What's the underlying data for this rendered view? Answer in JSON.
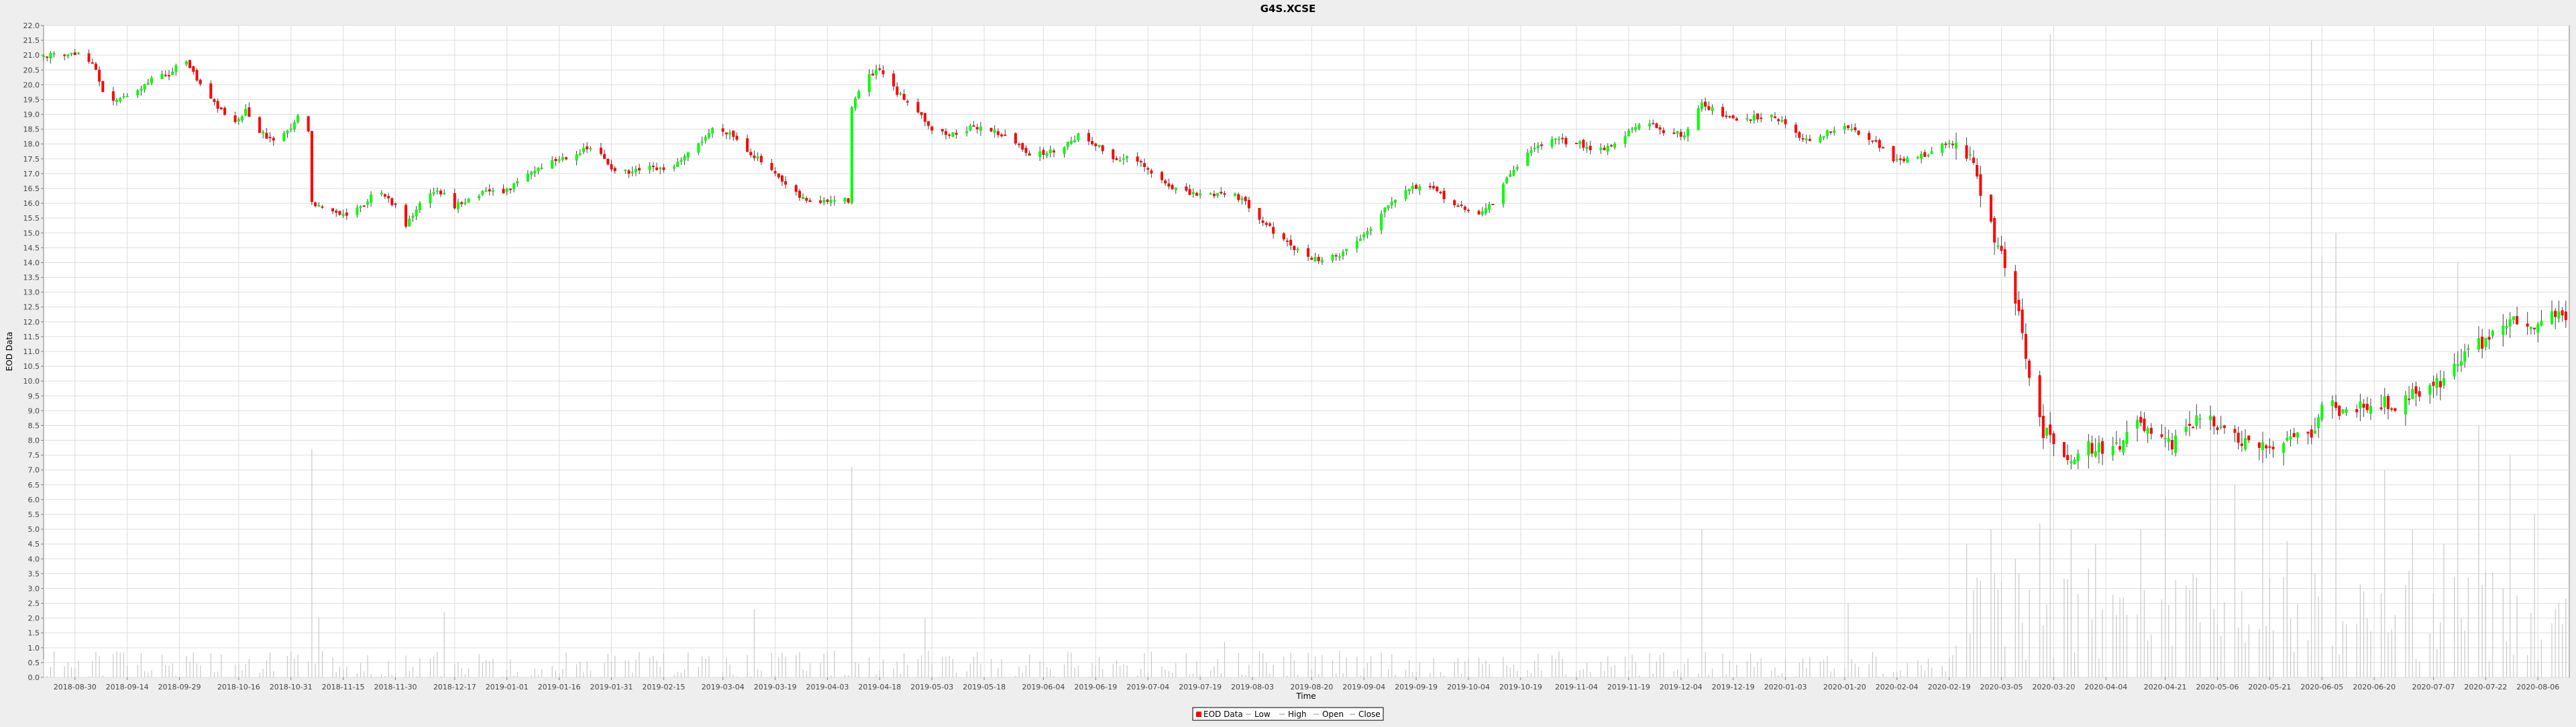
{
  "chart_data": {
    "type": "candlestick",
    "title": "G4S.XCSE",
    "xlabel": "Time",
    "ylabel": "EOD Data",
    "ylim": [
      0,
      22
    ],
    "y_ticks": [
      0.0,
      0.5,
      1.0,
      1.5,
      2.0,
      2.5,
      3.0,
      3.5,
      4.0,
      4.5,
      5.0,
      5.5,
      6.0,
      6.5,
      7.0,
      7.5,
      8.0,
      8.5,
      9.0,
      9.5,
      10.0,
      10.5,
      11.0,
      11.5,
      12.0,
      12.5,
      13.0,
      13.5,
      14.0,
      14.5,
      15.0,
      15.5,
      16.0,
      16.5,
      17.0,
      17.5,
      18.0,
      18.5,
      19.0,
      19.5,
      20.0,
      20.5,
      21.0,
      21.5,
      22.0
    ],
    "x_ticks": [
      "2018-08-30",
      "2018-09-14",
      "2018-09-29",
      "2018-10-16",
      "2018-10-31",
      "2018-11-15",
      "2018-11-30",
      "2018-12-17",
      "2019-01-01",
      "2019-01-16",
      "2019-01-31",
      "2019-02-15",
      "2019-03-04",
      "2019-03-19",
      "2019-04-03",
      "2019-04-18",
      "2019-05-03",
      "2019-05-18",
      "2019-06-04",
      "2019-06-19",
      "2019-07-04",
      "2019-07-19",
      "2019-08-03",
      "2019-08-20",
      "2019-09-04",
      "2019-09-19",
      "2019-10-04",
      "2019-10-19",
      "2019-11-04",
      "2019-11-19",
      "2019-12-04",
      "2019-12-19",
      "2020-01-03",
      "2020-01-20",
      "2020-02-04",
      "2020-02-19",
      "2020-03-05",
      "2020-03-20",
      "2020-04-04",
      "2020-04-21",
      "2020-05-06",
      "2020-05-21",
      "2020-06-05",
      "2020-06-20",
      "2020-07-07",
      "2020-07-22",
      "2020-08-06"
    ],
    "x_range": [
      "2018-08-21",
      "2020-08-15"
    ],
    "grid": true,
    "legend_position": "bottom",
    "legend": [
      "EOD Data",
      "Low",
      "High",
      "Open",
      "Close"
    ],
    "colors": {
      "up": "#00ff00",
      "down": "#ff0000",
      "wick": "#404040",
      "volume": "#c8c8c8",
      "grid": "#dedede",
      "plot_bg": "#ffffff",
      "page_bg": "#eeeeee"
    },
    "price_path": [
      [
        "2018-08-21",
        21.0
      ],
      [
        "2018-09-01",
        21.0
      ],
      [
        "2018-09-04",
        20.8
      ],
      [
        "2018-09-07",
        19.8
      ],
      [
        "2018-09-10",
        19.4
      ],
      [
        "2018-09-14",
        19.6
      ],
      [
        "2018-09-20",
        20.1
      ],
      [
        "2018-09-26",
        20.4
      ],
      [
        "2018-10-01",
        20.8
      ],
      [
        "2018-10-05",
        20.0
      ],
      [
        "2018-10-10",
        19.2
      ],
      [
        "2018-10-15",
        18.7
      ],
      [
        "2018-10-18",
        19.1
      ],
      [
        "2018-10-22",
        18.4
      ],
      [
        "2018-10-26",
        18.1
      ],
      [
        "2018-10-31",
        18.5
      ],
      [
        "2018-11-02",
        19.0
      ],
      [
        "2018-11-05",
        18.4
      ],
      [
        "2018-11-06",
        16.0
      ],
      [
        "2018-11-10",
        15.9
      ],
      [
        "2018-11-15",
        15.6
      ],
      [
        "2018-11-20",
        15.9
      ],
      [
        "2018-11-25",
        16.4
      ],
      [
        "2018-11-30",
        15.9
      ],
      [
        "2018-12-03",
        15.2
      ],
      [
        "2018-12-07",
        16.0
      ],
      [
        "2018-12-12",
        16.5
      ],
      [
        "2018-12-17",
        15.9
      ],
      [
        "2018-12-22",
        16.2
      ],
      [
        "2018-12-27",
        16.4
      ],
      [
        "2019-01-01",
        16.4
      ],
      [
        "2019-01-06",
        16.9
      ],
      [
        "2019-01-10",
        17.2
      ],
      [
        "2019-01-16",
        17.5
      ],
      [
        "2019-01-21",
        17.7
      ],
      [
        "2019-01-26",
        17.9
      ],
      [
        "2019-01-31",
        17.2
      ],
      [
        "2019-02-05",
        17.0
      ],
      [
        "2019-02-10",
        17.2
      ],
      [
        "2019-02-15",
        17.1
      ],
      [
        "2019-02-20",
        17.4
      ],
      [
        "2019-02-25",
        18.0
      ],
      [
        "2019-03-01",
        18.5
      ],
      [
        "2019-03-06",
        18.4
      ],
      [
        "2019-03-11",
        17.8
      ],
      [
        "2019-03-16",
        17.3
      ],
      [
        "2019-03-21",
        16.7
      ],
      [
        "2019-03-26",
        16.2
      ],
      [
        "2019-03-31",
        16.0
      ],
      [
        "2019-04-05",
        16.1
      ],
      [
        "2019-04-09",
        16.1
      ],
      [
        "2019-04-10",
        19.3
      ],
      [
        "2019-04-14",
        20.2
      ],
      [
        "2019-04-18",
        20.5
      ],
      [
        "2019-04-23",
        19.7
      ],
      [
        "2019-04-28",
        19.3
      ],
      [
        "2019-05-03",
        18.5
      ],
      [
        "2019-05-08",
        18.3
      ],
      [
        "2019-05-13",
        18.5
      ],
      [
        "2019-05-18",
        18.6
      ],
      [
        "2019-05-25",
        18.2
      ],
      [
        "2019-06-01",
        17.6
      ],
      [
        "2019-06-08",
        17.8
      ],
      [
        "2019-06-14",
        18.3
      ],
      [
        "2019-06-19",
        18.0
      ],
      [
        "2019-06-24",
        17.5
      ],
      [
        "2019-06-30",
        17.5
      ],
      [
        "2019-07-05",
        17.0
      ],
      [
        "2019-07-10",
        16.6
      ],
      [
        "2019-07-16",
        16.3
      ],
      [
        "2019-07-22",
        16.3
      ],
      [
        "2019-07-28",
        16.4
      ],
      [
        "2019-08-02",
        15.9
      ],
      [
        "2019-08-07",
        15.3
      ],
      [
        "2019-08-12",
        14.7
      ],
      [
        "2019-08-17",
        14.3
      ],
      [
        "2019-08-22",
        14.1
      ],
      [
        "2019-08-27",
        14.2
      ],
      [
        "2019-09-01",
        14.6
      ],
      [
        "2019-09-06",
        15.2
      ],
      [
        "2019-09-11",
        16.0
      ],
      [
        "2019-09-16",
        16.5
      ],
      [
        "2019-09-21",
        16.6
      ],
      [
        "2019-09-26",
        16.3
      ],
      [
        "2019-10-01",
        15.9
      ],
      [
        "2019-10-06",
        15.6
      ],
      [
        "2019-10-11",
        16.0
      ],
      [
        "2019-10-16",
        17.0
      ],
      [
        "2019-10-21",
        17.7
      ],
      [
        "2019-10-26",
        18.1
      ],
      [
        "2019-10-31",
        18.1
      ],
      [
        "2019-11-05",
        18.0
      ],
      [
        "2019-11-10",
        17.8
      ],
      [
        "2019-11-15",
        18.0
      ],
      [
        "2019-11-20",
        18.5
      ],
      [
        "2019-11-25",
        18.7
      ],
      [
        "2019-11-30",
        18.4
      ],
      [
        "2019-12-05",
        18.3
      ],
      [
        "2019-12-10",
        19.4
      ],
      [
        "2019-12-15",
        19.0
      ],
      [
        "2019-12-20",
        18.8
      ],
      [
        "2019-12-25",
        18.9
      ],
      [
        "2019-12-30",
        19.0
      ],
      [
        "2020-01-04",
        18.6
      ],
      [
        "2020-01-09",
        18.1
      ],
      [
        "2020-01-14",
        18.3
      ],
      [
        "2020-01-19",
        18.6
      ],
      [
        "2020-01-24",
        18.4
      ],
      [
        "2020-01-29",
        18.1
      ],
      [
        "2020-02-03",
        17.4
      ],
      [
        "2020-02-08",
        17.5
      ],
      [
        "2020-02-13",
        17.7
      ],
      [
        "2020-02-18",
        18.0
      ],
      [
        "2020-02-22",
        18.0
      ],
      [
        "2020-02-26",
        17.3
      ],
      [
        "2020-03-01",
        15.5
      ],
      [
        "2020-03-05",
        14.2
      ],
      [
        "2020-03-08",
        13.2
      ],
      [
        "2020-03-10",
        12.2
      ],
      [
        "2020-03-12",
        10.8
      ],
      [
        "2020-03-14",
        9.3
      ],
      [
        "2020-03-17",
        8.3
      ],
      [
        "2020-03-21",
        7.9
      ],
      [
        "2020-03-25",
        7.4
      ],
      [
        "2020-03-29",
        7.8
      ],
      [
        "2020-04-03",
        7.7
      ],
      [
        "2020-04-08",
        7.9
      ],
      [
        "2020-04-13",
        8.6
      ],
      [
        "2020-04-18",
        8.0
      ],
      [
        "2020-04-23",
        7.8
      ],
      [
        "2020-04-28",
        8.6
      ],
      [
        "2020-05-03",
        8.7
      ],
      [
        "2020-05-08",
        8.3
      ],
      [
        "2020-05-13",
        7.9
      ],
      [
        "2020-05-18",
        7.7
      ],
      [
        "2020-05-23",
        7.8
      ],
      [
        "2020-05-28",
        8.3
      ],
      [
        "2020-06-02",
        8.2
      ],
      [
        "2020-06-06",
        9.5
      ],
      [
        "2020-06-11",
        8.9
      ],
      [
        "2020-06-16",
        9.2
      ],
      [
        "2020-06-21",
        9.3
      ],
      [
        "2020-06-26",
        9.2
      ],
      [
        "2020-07-01",
        9.6
      ],
      [
        "2020-07-06",
        9.8
      ],
      [
        "2020-07-11",
        10.1
      ],
      [
        "2020-07-16",
        11.0
      ],
      [
        "2020-07-21",
        11.3
      ],
      [
        "2020-07-26",
        11.9
      ],
      [
        "2020-07-31",
        12.0
      ],
      [
        "2020-08-05",
        11.9
      ],
      [
        "2020-08-10",
        12.3
      ],
      [
        "2020-08-15",
        12.2
      ]
    ],
    "volume_spikes": [
      [
        "2018-11-06",
        7.7
      ],
      [
        "2018-11-08",
        2.0
      ],
      [
        "2018-12-08",
        2.8
      ],
      [
        "2018-12-14",
        2.2
      ],
      [
        "2019-03-13",
        2.3
      ],
      [
        "2019-04-10",
        7.1
      ],
      [
        "2019-05-01",
        2.0
      ],
      [
        "2019-07-26",
        1.2
      ],
      [
        "2019-12-10",
        5.0
      ],
      [
        "2020-01-21",
        2.5
      ],
      [
        "2020-02-24",
        4.5
      ],
      [
        "2020-03-02",
        5.0
      ],
      [
        "2020-03-09",
        4.0
      ],
      [
        "2020-03-16",
        5.2
      ],
      [
        "2020-03-19",
        21.7
      ],
      [
        "2020-03-25",
        5.0
      ],
      [
        "2020-04-01",
        4.5
      ],
      [
        "2020-04-14",
        5.0
      ],
      [
        "2020-04-21",
        6.1
      ],
      [
        "2020-04-25",
        7.0
      ],
      [
        "2020-05-04",
        9.0
      ],
      [
        "2020-05-11",
        6.5
      ],
      [
        "2020-05-19",
        8.0
      ],
      [
        "2020-05-26",
        4.6
      ],
      [
        "2020-06-02",
        21.5
      ],
      [
        "2020-06-05",
        14.2
      ],
      [
        "2020-06-09",
        15.0
      ],
      [
        "2020-06-14",
        10.0
      ],
      [
        "2020-06-23",
        7.0
      ],
      [
        "2020-07-01",
        5.0
      ],
      [
        "2020-07-10",
        4.5
      ],
      [
        "2020-07-14",
        14.0
      ],
      [
        "2020-07-20",
        8.5
      ],
      [
        "2020-07-29",
        7.5
      ],
      [
        "2020-08-05",
        5.5
      ],
      [
        "2020-08-12",
        2.5
      ]
    ]
  }
}
